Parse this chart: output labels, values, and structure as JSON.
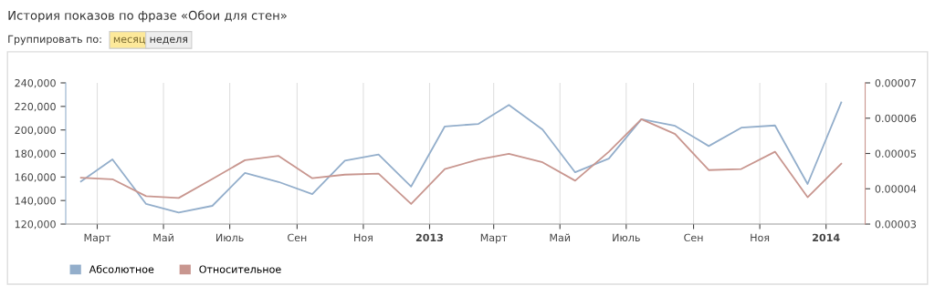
{
  "chart_data": {
    "type": "line",
    "title": "История показов по фразе «Обои для стен»",
    "annotations": [
      "Группировать по:",
      "месяц",
      "неделя"
    ],
    "x": [
      "2012-02-15",
      "2012-03-15",
      "2012-04-15",
      "2012-05-15",
      "2012-06-15",
      "2012-07-15",
      "2012-08-15",
      "2012-09-15",
      "2012-10-15",
      "2012-11-15",
      "2012-12-15",
      "2013-01-15",
      "2013-02-15",
      "2013-03-15",
      "2013-04-15",
      "2013-05-15",
      "2013-06-15",
      "2013-07-15",
      "2013-08-15",
      "2013-09-15",
      "2013-10-15",
      "2013-11-15",
      "2013-12-15",
      "2014-01-15"
    ],
    "series": [
      {
        "name": "Абсолютное",
        "color": "#93aecb",
        "values": [
          156300,
          175000,
          137100,
          129800,
          135500,
          163500,
          155800,
          145400,
          173900,
          179100,
          151900,
          203000,
          205100,
          221200,
          200300,
          164000,
          175600,
          209100,
          203500,
          186300,
          201900,
          203800,
          154100,
          223400
        ]
      },
      {
        "name": "Относительное",
        "color": "#c8968f",
        "axis": "y2",
        "values": [
          4.31e-05,
          4.27e-05,
          3.79e-05,
          3.74e-05,
          4.28e-05,
          4.81e-05,
          4.93e-05,
          4.3e-05,
          4.4e-05,
          4.43e-05,
          3.57e-05,
          4.56e-05,
          4.83e-05,
          4.99e-05,
          4.75e-05,
          4.23e-05,
          5.05e-05,
          5.97e-05,
          5.55e-05,
          4.53e-05,
          4.56e-05,
          5.05e-05,
          3.76e-05,
          4.71e-05
        ]
      }
    ],
    "xlim": [
      "2012-02-01",
      "2014-02-06"
    ],
    "xticks": [
      {
        "value": "2012-03-01",
        "label": "Март"
      },
      {
        "value": "2012-05-01",
        "label": "Май"
      },
      {
        "value": "2012-07-01",
        "label": "Июль"
      },
      {
        "value": "2012-09-01",
        "label": "Сен"
      },
      {
        "value": "2012-11-01",
        "label": "Ноя"
      },
      {
        "value": "2013-01-01",
        "label": "2013"
      },
      {
        "value": "2013-03-01",
        "label": "Март"
      },
      {
        "value": "2013-05-01",
        "label": "Май"
      },
      {
        "value": "2013-07-01",
        "label": "Июль"
      },
      {
        "value": "2013-09-01",
        "label": "Сен"
      },
      {
        "value": "2013-11-01",
        "label": "Ноя"
      },
      {
        "value": "2014-01-01",
        "label": "2014"
      }
    ],
    "ylim": [
      120000,
      240000
    ],
    "yticks": [
      {
        "value": 120000,
        "label": "120,000"
      },
      {
        "value": 140000,
        "label": "140,000"
      },
      {
        "value": 160000,
        "label": "160,000"
      },
      {
        "value": 180000,
        "label": "180,000"
      },
      {
        "value": 200000,
        "label": "200,000"
      },
      {
        "value": 220000,
        "label": "220,000"
      },
      {
        "value": 240000,
        "label": "240,000"
      }
    ],
    "y2lim": [
      3e-05,
      7e-05
    ],
    "y2ticks": [
      {
        "value": 3e-05,
        "label": "0.00003"
      },
      {
        "value": 4e-05,
        "label": "0.00004"
      },
      {
        "value": 5e-05,
        "label": "0.00005"
      },
      {
        "value": 6e-05,
        "label": "0.00006"
      },
      {
        "value": 7e-05,
        "label": "0.00007"
      }
    ],
    "grid": "x",
    "legend": "bottom left",
    "marker": "none",
    "line_style": "solid"
  }
}
